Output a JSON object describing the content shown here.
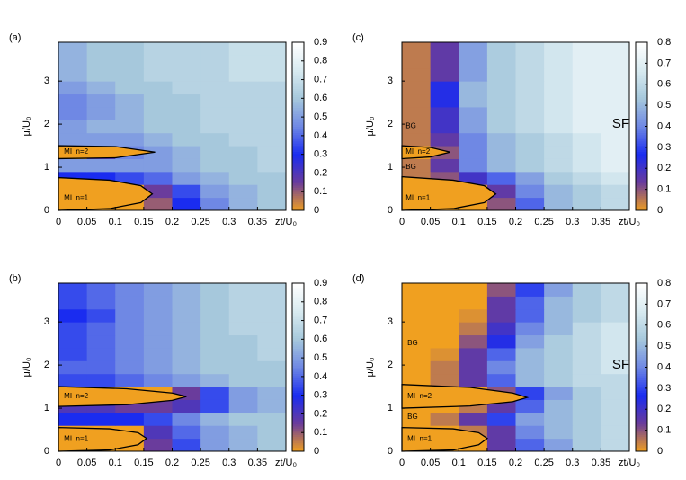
{
  "chart_data": [
    {
      "type": "heatmap",
      "label": "(a)",
      "xlabel": "zt/U₀",
      "ylabel": "μ/U₀",
      "xlim": [
        0,
        0.4
      ],
      "ylim": [
        0,
        3.9
      ],
      "xticks": [
        0,
        0.05,
        0.1,
        0.15,
        0.2,
        0.25,
        0.3,
        0.35
      ],
      "yticks": [
        0,
        1,
        2,
        3
      ],
      "zlim": [
        0,
        0.9
      ],
      "zticks": [
        0,
        0.1,
        0.2,
        0.3,
        0.4,
        0.5,
        0.6,
        0.7,
        0.8,
        0.9
      ],
      "colormap": [
        "#f0a020",
        "#6a3c9c",
        "#1a2cf0",
        "#6f88e4",
        "#a6c8dc",
        "#d8eaf0",
        "#ffffff"
      ],
      "x_edges": [
        0,
        0.05,
        0.1,
        0.15,
        0.2,
        0.25,
        0.3,
        0.35,
        0.4
      ],
      "y_edges": [
        0,
        0.3,
        0.6,
        0.9,
        1.2,
        1.5,
        1.8,
        2.1,
        2.4,
        2.7,
        3.0,
        3.3,
        3.6,
        3.9
      ],
      "z": [
        [
          0,
          0,
          0,
          0.1,
          0.3,
          0.45,
          0.55,
          0.6
        ],
        [
          0,
          0,
          0,
          0.15,
          0.35,
          0.5,
          0.55,
          0.6
        ],
        [
          0.3,
          0.3,
          0.35,
          0.4,
          0.5,
          0.55,
          0.6,
          0.6
        ],
        [
          0.5,
          0.5,
          0.5,
          0.5,
          0.55,
          0.6,
          0.6,
          0.65
        ],
        [
          0,
          0.2,
          0.45,
          0.5,
          0.55,
          0.6,
          0.6,
          0.65
        ],
        [
          0.5,
          0.5,
          0.5,
          0.55,
          0.6,
          0.6,
          0.65,
          0.65
        ],
        [
          0.5,
          0.55,
          0.55,
          0.6,
          0.6,
          0.65,
          0.65,
          0.65
        ],
        [
          0.45,
          0.5,
          0.55,
          0.6,
          0.6,
          0.65,
          0.65,
          0.65
        ],
        [
          0.45,
          0.5,
          0.55,
          0.6,
          0.6,
          0.65,
          0.65,
          0.65
        ],
        [
          0.5,
          0.55,
          0.6,
          0.6,
          0.65,
          0.65,
          0.65,
          0.65
        ],
        [
          0.55,
          0.6,
          0.6,
          0.65,
          0.65,
          0.65,
          0.7,
          0.7
        ],
        [
          0.55,
          0.6,
          0.6,
          0.65,
          0.65,
          0.65,
          0.7,
          0.7
        ],
        [
          0.55,
          0.6,
          0.6,
          0.65,
          0.65,
          0.65,
          0.7,
          0.7
        ]
      ],
      "lobes": [
        {
          "x": [
            0,
            0.09,
            0.145,
            0.165,
            0.145,
            0.09,
            0
          ],
          "y": [
            0,
            0.04,
            0.18,
            0.38,
            0.57,
            0.7,
            0.76
          ]
        },
        {
          "x": [
            0,
            0.1,
            0.17,
            0.1,
            0
          ],
          "y": [
            1.2,
            1.22,
            1.35,
            1.48,
            1.5
          ]
        }
      ],
      "lobe_color": "#f0a020",
      "annotations": [
        "MI  n=2",
        "MI  n=1"
      ]
    },
    {
      "type": "heatmap",
      "label": "(b)",
      "xlabel": "zt/U₀",
      "ylabel": "μ/U₀",
      "xlim": [
        0,
        0.4
      ],
      "ylim": [
        0,
        3.9
      ],
      "xticks": [
        0,
        0.05,
        0.1,
        0.15,
        0.2,
        0.25,
        0.3,
        0.35
      ],
      "yticks": [
        0,
        1,
        2,
        3
      ],
      "zlim": [
        0,
        0.9
      ],
      "zticks": [
        0,
        0.1,
        0.2,
        0.3,
        0.4,
        0.5,
        0.6,
        0.7,
        0.8,
        0.9
      ],
      "colormap": [
        "#f0a020",
        "#6a3c9c",
        "#1a2cf0",
        "#6f88e4",
        "#a6c8dc",
        "#d8eaf0",
        "#ffffff"
      ],
      "x_edges": [
        0,
        0.05,
        0.1,
        0.15,
        0.2,
        0.25,
        0.3,
        0.35,
        0.4
      ],
      "y_edges": [
        0,
        0.3,
        0.6,
        0.9,
        1.2,
        1.5,
        1.8,
        2.1,
        2.4,
        2.7,
        3.0,
        3.3,
        3.6,
        3.9
      ],
      "z": [
        [
          0,
          0,
          0,
          0.15,
          0.35,
          0.5,
          0.55,
          0.6
        ],
        [
          0,
          0,
          0,
          0.2,
          0.4,
          0.5,
          0.55,
          0.6
        ],
        [
          0.3,
          0.3,
          0.3,
          0.35,
          0.45,
          0.55,
          0.6,
          0.6
        ],
        [
          0.2,
          0.2,
          0.15,
          0.15,
          0.2,
          0.35,
          0.5,
          0.55
        ],
        [
          0,
          0,
          0,
          0,
          0.15,
          0.35,
          0.5,
          0.55
        ],
        [
          0.35,
          0.35,
          0.4,
          0.45,
          0.5,
          0.55,
          0.6,
          0.6
        ],
        [
          0.4,
          0.4,
          0.45,
          0.5,
          0.55,
          0.6,
          0.6,
          0.6
        ],
        [
          0.35,
          0.4,
          0.45,
          0.5,
          0.55,
          0.6,
          0.6,
          0.65
        ],
        [
          0.35,
          0.4,
          0.45,
          0.5,
          0.55,
          0.6,
          0.6,
          0.65
        ],
        [
          0.35,
          0.4,
          0.45,
          0.5,
          0.55,
          0.6,
          0.65,
          0.65
        ],
        [
          0.3,
          0.35,
          0.45,
          0.5,
          0.55,
          0.6,
          0.65,
          0.65
        ],
        [
          0.35,
          0.4,
          0.45,
          0.5,
          0.55,
          0.6,
          0.65,
          0.65
        ],
        [
          0.35,
          0.4,
          0.45,
          0.5,
          0.55,
          0.6,
          0.65,
          0.65
        ]
      ],
      "lobes": [
        {
          "x": [
            0,
            0.09,
            0.14,
            0.155,
            0.14,
            0.09,
            0
          ],
          "y": [
            0,
            0.03,
            0.15,
            0.3,
            0.43,
            0.52,
            0.55
          ]
        },
        {
          "x": [
            0,
            0.12,
            0.2,
            0.225,
            0.2,
            0.12,
            0
          ],
          "y": [
            1.04,
            1.08,
            1.18,
            1.27,
            1.35,
            1.45,
            1.5
          ]
        }
      ],
      "lobe_color": "#f0a020",
      "annotations": [
        "MI  n=2",
        "MI  n=1"
      ]
    },
    {
      "type": "heatmap",
      "label": "(c)",
      "xlabel": "zt/U₀",
      "ylabel": "μ/U₀",
      "xlim": [
        0,
        0.4
      ],
      "ylim": [
        0,
        3.9
      ],
      "xticks": [
        0,
        0.05,
        0.1,
        0.15,
        0.2,
        0.25,
        0.3,
        0.35
      ],
      "yticks": [
        0,
        1,
        2,
        3
      ],
      "zlim": [
        0,
        0.8
      ],
      "zticks": [
        0,
        0.1,
        0.2,
        0.3,
        0.4,
        0.5,
        0.6,
        0.7,
        0.8
      ],
      "colormap": [
        "#f0a020",
        "#6a3c9c",
        "#1a2cf0",
        "#6f88e4",
        "#a6c8dc",
        "#d8eaf0",
        "#ffffff"
      ],
      "x_edges": [
        0,
        0.05,
        0.1,
        0.15,
        0.2,
        0.25,
        0.3,
        0.35,
        0.4
      ],
      "y_edges": [
        0,
        0.3,
        0.6,
        0.9,
        1.2,
        1.5,
        1.8,
        2.1,
        2.4,
        2.7,
        3.0,
        3.3,
        3.6,
        3.9
      ],
      "z": [
        [
          0,
          0,
          0,
          0.1,
          0.35,
          0.5,
          0.55,
          0.6
        ],
        [
          0,
          0,
          0,
          0.15,
          0.4,
          0.5,
          0.55,
          0.6
        ],
        [
          0.05,
          0.1,
          0.2,
          0.35,
          0.45,
          0.55,
          0.6,
          0.65
        ],
        [
          0.05,
          0.15,
          0.4,
          0.5,
          0.55,
          0.6,
          0.65,
          0.7
        ],
        [
          0,
          0.1,
          0.4,
          0.5,
          0.55,
          0.6,
          0.65,
          0.7
        ],
        [
          0.05,
          0.15,
          0.4,
          0.5,
          0.55,
          0.6,
          0.65,
          0.7
        ],
        [
          0.05,
          0.2,
          0.45,
          0.55,
          0.6,
          0.65,
          0.7,
          0.7
        ],
        [
          0.05,
          0.2,
          0.45,
          0.55,
          0.6,
          0.65,
          0.7,
          0.7
        ],
        [
          0.05,
          0.25,
          0.5,
          0.55,
          0.6,
          0.65,
          0.7,
          0.7
        ],
        [
          0.05,
          0.25,
          0.5,
          0.55,
          0.6,
          0.65,
          0.7,
          0.7
        ],
        [
          0.05,
          0.15,
          0.45,
          0.55,
          0.6,
          0.65,
          0.7,
          0.7
        ],
        [
          0.05,
          0.15,
          0.45,
          0.55,
          0.6,
          0.65,
          0.7,
          0.7
        ],
        [
          0.05,
          0.15,
          0.45,
          0.55,
          0.6,
          0.65,
          0.7,
          0.7
        ]
      ],
      "lobes": [
        {
          "x": [
            0,
            0.09,
            0.145,
            0.165,
            0.145,
            0.09,
            0
          ],
          "y": [
            0,
            0.04,
            0.18,
            0.38,
            0.57,
            0.7,
            0.78
          ]
        },
        {
          "x": [
            0,
            0.05,
            0.085,
            0.05,
            0
          ],
          "y": [
            1.2,
            1.24,
            1.35,
            1.46,
            1.5
          ]
        }
      ],
      "lobe_color": "#f0a020",
      "annotations": [
        "BG",
        "MI  n=2",
        "BG",
        "MI  n=1",
        "SF"
      ]
    },
    {
      "type": "heatmap",
      "label": "(d)",
      "xlabel": "zt/U₀",
      "ylabel": "μ/U₀",
      "xlim": [
        0,
        0.4
      ],
      "ylim": [
        0,
        3.9
      ],
      "xticks": [
        0,
        0.05,
        0.1,
        0.15,
        0.2,
        0.25,
        0.3,
        0.35
      ],
      "yticks": [
        0,
        1,
        2,
        3
      ],
      "zlim": [
        0,
        0.8
      ],
      "zticks": [
        0,
        0.1,
        0.2,
        0.3,
        0.4,
        0.5,
        0.6,
        0.7,
        0.8
      ],
      "colormap": [
        "#f0a020",
        "#6a3c9c",
        "#1a2cf0",
        "#6f88e4",
        "#a6c8dc",
        "#d8eaf0",
        "#ffffff"
      ],
      "x_edges": [
        0,
        0.05,
        0.1,
        0.15,
        0.2,
        0.25,
        0.3,
        0.35,
        0.4
      ],
      "y_edges": [
        0,
        0.3,
        0.6,
        0.9,
        1.2,
        1.5,
        1.8,
        2.1,
        2.4,
        2.7,
        3.0,
        3.3,
        3.6,
        3.9
      ],
      "z": [
        [
          0,
          0,
          0,
          0.15,
          0.35,
          0.45,
          0.55,
          0.6
        ],
        [
          0,
          0,
          0.05,
          0.15,
          0.4,
          0.5,
          0.55,
          0.6
        ],
        [
          0,
          0.05,
          0.15,
          0.3,
          0.45,
          0.5,
          0.55,
          0.6
        ],
        [
          0,
          0,
          0.05,
          0.15,
          0.35,
          0.5,
          0.55,
          0.6
        ],
        [
          0,
          0,
          0,
          0.1,
          0.3,
          0.45,
          0.55,
          0.6
        ],
        [
          0,
          0.05,
          0.15,
          0.35,
          0.5,
          0.55,
          0.6,
          0.6
        ],
        [
          0,
          0.05,
          0.15,
          0.4,
          0.5,
          0.55,
          0.6,
          0.65
        ],
        [
          0,
          0.02,
          0.15,
          0.35,
          0.5,
          0.55,
          0.6,
          0.65
        ],
        [
          0,
          0,
          0.1,
          0.25,
          0.45,
          0.55,
          0.6,
          0.65
        ],
        [
          0,
          0,
          0.05,
          0.2,
          0.4,
          0.5,
          0.6,
          0.65
        ],
        [
          0,
          0,
          0.02,
          0.15,
          0.35,
          0.5,
          0.55,
          0.6
        ],
        [
          0,
          0,
          0,
          0.15,
          0.35,
          0.5,
          0.55,
          0.6
        ],
        [
          0,
          0,
          0,
          0.1,
          0.3,
          0.45,
          0.55,
          0.6
        ]
      ],
      "lobes": [
        {
          "x": [
            0,
            0.09,
            0.135,
            0.15,
            0.135,
            0.09,
            0
          ],
          "y": [
            0,
            0.03,
            0.15,
            0.3,
            0.43,
            0.52,
            0.55
          ]
        },
        {
          "x": [
            0,
            0.12,
            0.195,
            0.22,
            0.195,
            0.12,
            0
          ],
          "y": [
            1.0,
            1.05,
            1.15,
            1.25,
            1.35,
            1.48,
            1.55
          ]
        }
      ],
      "lobe_color": "#f0a020",
      "annotations": [
        "BG",
        "MI  n=2",
        "BG",
        "MI  n=1",
        "SF"
      ]
    }
  ]
}
